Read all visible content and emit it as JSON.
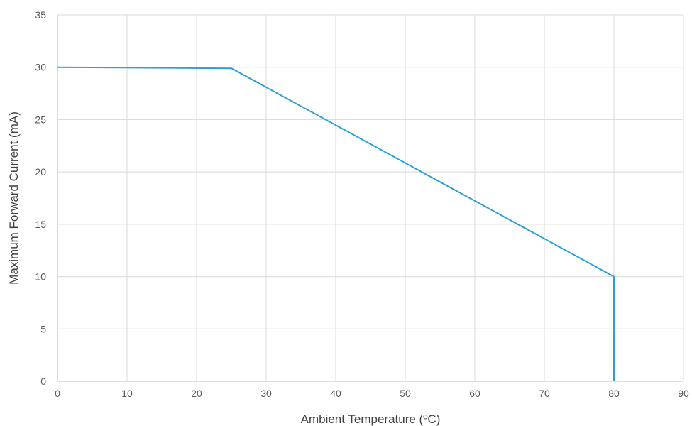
{
  "chart_data": {
    "type": "line",
    "title": "",
    "xlabel": "Ambient Temperature (ºC)",
    "ylabel": "Maximum Forward Current (mA)",
    "xlim": [
      0,
      90
    ],
    "ylim": [
      0,
      35
    ],
    "x_ticks": [
      0,
      10,
      20,
      30,
      40,
      50,
      60,
      70,
      80,
      90
    ],
    "y_ticks": [
      0,
      5,
      10,
      15,
      20,
      25,
      30,
      35
    ],
    "grid": true,
    "legend": "none",
    "series": [
      {
        "color": "#2e9fd6",
        "points": [
          [
            0,
            30
          ],
          [
            25,
            29.9
          ],
          [
            80,
            10
          ],
          [
            80,
            0
          ]
        ]
      }
    ]
  }
}
